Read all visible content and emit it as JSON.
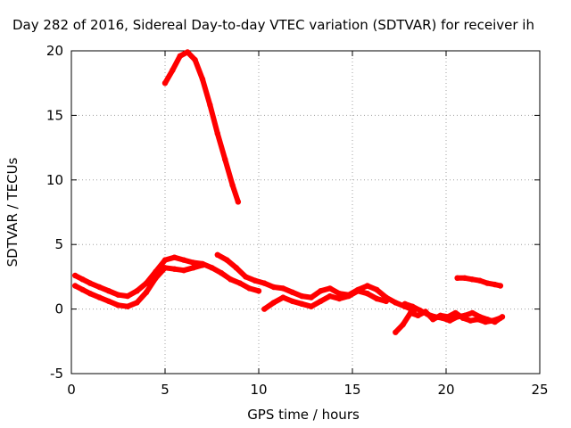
{
  "chart_data": {
    "type": "scatter",
    "title": "Day 282 of 2016, Sidereal Day-to-day VTEC variation (SDTVAR) for receiver ih",
    "xlabel": "GPS time / hours",
    "ylabel": "SDTVAR / TECUs",
    "xlim": [
      0,
      25
    ],
    "ylim": [
      -5,
      20
    ],
    "xticks": [
      0,
      5,
      10,
      15,
      20,
      25
    ],
    "yticks": [
      -5,
      0,
      5,
      10,
      15,
      20
    ],
    "grid": true,
    "legend": "none",
    "series_color": "#ff0000",
    "series": [
      {
        "x": [
          5.0,
          5.4,
          5.8,
          6.2,
          6.6,
          7.0,
          7.4,
          7.8,
          8.2,
          8.6,
          8.9
        ],
        "y": [
          17.5,
          18.5,
          19.6,
          19.9,
          19.3,
          17.8,
          15.8,
          13.6,
          11.6,
          9.6,
          8.3
        ]
      },
      {
        "x": [
          0.2,
          0.6,
          1.0,
          1.5,
          2.0,
          2.5,
          3.0,
          3.5,
          4.0,
          4.5,
          5.0,
          5.5,
          6.0,
          6.5,
          7.0,
          7.5,
          8.0,
          8.5,
          9.0,
          9.5,
          10.0
        ],
        "y": [
          2.6,
          2.3,
          2.0,
          1.7,
          1.4,
          1.1,
          1.0,
          1.4,
          2.0,
          2.9,
          3.8,
          4.0,
          3.8,
          3.6,
          3.5,
          3.2,
          2.8,
          2.3,
          2.0,
          1.6,
          1.4
        ]
      },
      {
        "x": [
          0.2,
          0.6,
          1.0,
          1.5,
          2.0,
          2.5,
          3.0,
          3.5,
          4.0,
          4.5,
          5.0,
          5.5,
          6.0,
          6.5,
          7.0
        ],
        "y": [
          1.8,
          1.5,
          1.2,
          0.9,
          0.6,
          0.3,
          0.2,
          0.5,
          1.3,
          2.4,
          3.2,
          3.1,
          3.0,
          3.2,
          3.4
        ]
      },
      {
        "x": [
          7.8,
          8.3,
          8.8,
          9.3,
          9.8,
          10.3,
          10.8,
          11.3,
          11.8,
          12.3,
          12.8,
          13.3,
          13.8,
          14.3,
          14.8,
          15.3,
          15.8,
          16.3,
          16.8,
          17.3,
          17.8,
          18.3
        ],
        "y": [
          4.2,
          3.8,
          3.2,
          2.5,
          2.2,
          2.0,
          1.7,
          1.6,
          1.3,
          1.0,
          0.9,
          1.4,
          1.6,
          1.2,
          1.1,
          1.5,
          1.8,
          1.5,
          0.9,
          0.5,
          0.2,
          -0.1
        ]
      },
      {
        "x": [
          10.3,
          10.8,
          11.3,
          11.8,
          12.3,
          12.8,
          13.3,
          13.8,
          14.3,
          14.8,
          15.3,
          15.8,
          16.3,
          16.8
        ],
        "y": [
          0.0,
          0.5,
          0.9,
          0.6,
          0.4,
          0.2,
          0.6,
          1.0,
          0.8,
          1.0,
          1.4,
          1.2,
          0.8,
          0.6
        ]
      },
      {
        "x": [
          17.3,
          17.7,
          18.1,
          18.5,
          18.9,
          19.3,
          19.7,
          20.1,
          20.5,
          20.9,
          21.3,
          21.7,
          22.1,
          22.5,
          22.9
        ],
        "y": [
          -1.8,
          -1.2,
          -0.3,
          -0.5,
          -0.2,
          -0.8,
          -0.5,
          -0.6,
          -0.3,
          -0.7,
          -0.9,
          -0.8,
          -1.0,
          -0.9,
          -0.7
        ]
      },
      {
        "x": [
          17.8,
          18.2,
          18.6,
          19.0,
          19.4,
          19.8,
          20.2,
          20.6,
          21.0,
          21.4,
          21.8,
          22.2,
          22.6,
          23.0
        ],
        "y": [
          0.4,
          0.2,
          -0.1,
          -0.4,
          -0.6,
          -0.7,
          -0.9,
          -0.6,
          -0.5,
          -0.3,
          -0.6,
          -0.8,
          -1.0,
          -0.6
        ]
      },
      {
        "x": [
          20.6,
          21.0,
          21.4,
          21.8,
          22.2,
          22.6,
          22.9
        ],
        "y": [
          2.4,
          2.4,
          2.3,
          2.2,
          2.0,
          1.9,
          1.8
        ]
      }
    ]
  }
}
